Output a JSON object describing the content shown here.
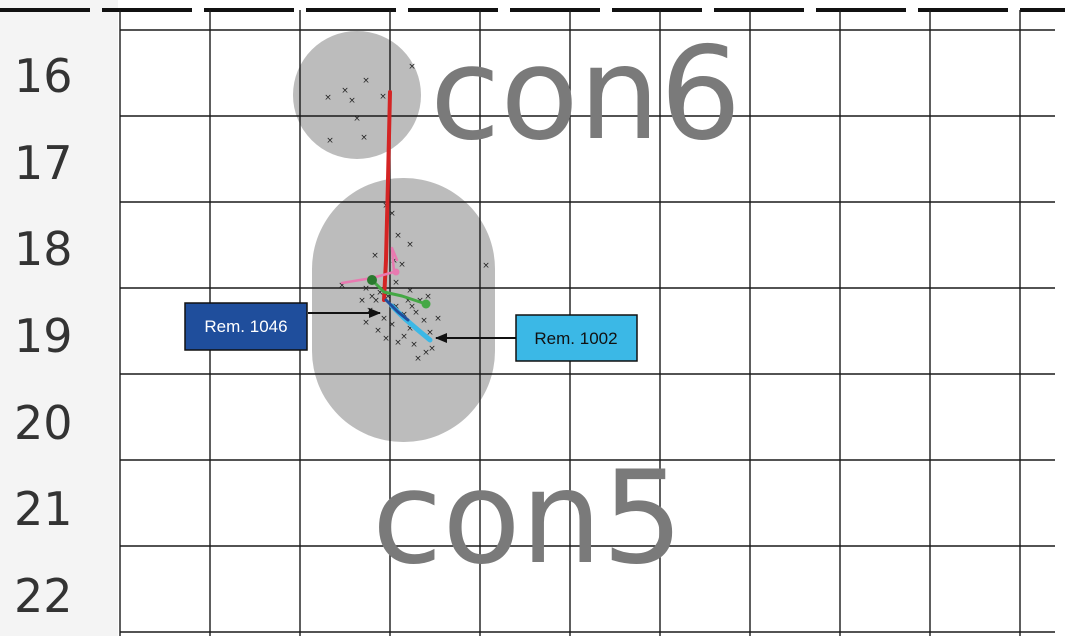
{
  "rows": [
    "16",
    "17",
    "18",
    "19",
    "20",
    "21",
    "22"
  ],
  "regions": [
    {
      "label": "con6"
    },
    {
      "label": "con5"
    }
  ],
  "callouts": [
    {
      "id": "rem-1046",
      "text": "Rem. 1046",
      "bg": "#1f4e9c",
      "fg": "#ffffff"
    },
    {
      "id": "rem-1002",
      "text": "Rem. 1002",
      "bg": "#3bb8e6",
      "fg": "#111111"
    }
  ],
  "colors": {
    "region_fill": "#bcbcbc",
    "grid": "#1a1a1a",
    "trajectory_red": "#d42424",
    "trajectory_pink": "#e87ab0",
    "trajectory_green": "#44a845",
    "trajectory_cyan": "#3bb8e6",
    "trajectory_blue": "#1f4e9c"
  }
}
